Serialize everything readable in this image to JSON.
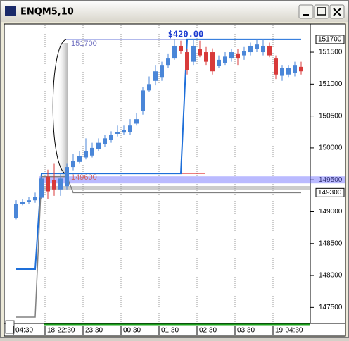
{
  "window": {
    "title": "ENQM5,10"
  },
  "chart_data": {
    "type": "candlestick",
    "categories": [
      "04:30",
      null,
      null,
      null,
      null,
      "18-22:30",
      null,
      null,
      null,
      null,
      null,
      "23:30",
      null,
      null,
      null,
      null,
      null,
      "00:30",
      null,
      null,
      null,
      null,
      null,
      "01:30",
      null,
      null,
      null,
      null,
      null,
      "02:30",
      null,
      null,
      null,
      null,
      null,
      "03:30",
      null,
      null,
      null,
      null,
      null,
      "19-04:30",
      null,
      null,
      null,
      null
    ],
    "open": [
      148900,
      149120,
      149150,
      149180,
      149220,
      149550,
      149500,
      149350,
      149400,
      149700,
      149780,
      149850,
      149880,
      149980,
      150060,
      150130,
      150220,
      150240,
      150250,
      150380,
      150580,
      150900,
      151050,
      151100,
      151300,
      151400,
      151600,
      151500,
      151350,
      151550,
      151500,
      151500,
      151280,
      151330,
      151400,
      151480,
      151450,
      151500,
      151550,
      151500,
      151600,
      151400,
      151130,
      151150,
      151170,
      151270
    ],
    "high": [
      149180,
      149200,
      149230,
      149300,
      149550,
      149660,
      149750,
      149600,
      149750,
      149900,
      149950,
      150150,
      150080,
      150150,
      150200,
      150260,
      150350,
      150350,
      150450,
      150550,
      150950,
      151120,
      151300,
      151350,
      151480,
      151700,
      151680,
      151550,
      151700,
      151680,
      151580,
      151560,
      151450,
      151500,
      151550,
      151550,
      151580,
      151650,
      151700,
      151700,
      151650,
      151450,
      151300,
      151300,
      151350,
      151350
    ],
    "low": [
      148880,
      149100,
      149120,
      149140,
      149200,
      149200,
      149250,
      149250,
      149350,
      149650,
      149750,
      149820,
      149850,
      149950,
      150020,
      150080,
      150180,
      150200,
      150200,
      150350,
      150520,
      150880,
      150980,
      151050,
      151250,
      151380,
      151480,
      151150,
      151300,
      151420,
      151300,
      151150,
      151250,
      151300,
      151350,
      151300,
      151380,
      151450,
      151500,
      151450,
      151420,
      151080,
      151050,
      151100,
      151120,
      151150
    ],
    "close": [
      149120,
      149150,
      149180,
      149230,
      149520,
      149320,
      149350,
      149520,
      149700,
      149800,
      149870,
      149950,
      150000,
      150080,
      150150,
      150200,
      150250,
      150280,
      150350,
      150450,
      150900,
      151000,
      151200,
      151300,
      151400,
      151600,
      151520,
      151220,
      151600,
      151450,
      151350,
      151200,
      151380,
      151430,
      151500,
      151400,
      151520,
      151600,
      151620,
      151600,
      151450,
      151150,
      151250,
      151250,
      151300,
      151200
    ],
    "up_color": "#4a86d8",
    "down_color": "#d83a3a",
    "ylim": [
      147250,
      151920
    ],
    "yticks": [
      147500,
      148000,
      148500,
      149000,
      149500,
      150000,
      150500,
      151000,
      151500
    ],
    "grid": "x",
    "price_markers": [
      151700,
      149300
    ],
    "levels": [
      {
        "value": 151700,
        "color": "#3344cc"
      },
      {
        "value": 149600,
        "color": "#e03030"
      }
    ],
    "band": 149500,
    "annotation": "$420.00",
    "step_lines": [
      {
        "color": "#1e6fd9",
        "values": [
          148100,
          148100,
          148100,
          148100,
          149600,
          149600,
          149600,
          149600,
          149600,
          149600,
          149600,
          149600,
          149600,
          149600,
          149600,
          149600,
          149600,
          149600,
          149600,
          149600,
          149600,
          149600,
          149600,
          149600,
          149600,
          149600,
          149600,
          151700,
          151700,
          151700,
          151700,
          151700,
          151700,
          151700,
          151700,
          151700,
          151700,
          151700,
          151700,
          151700,
          151700,
          151700,
          151700,
          151700,
          151700,
          151700
        ]
      },
      {
        "color": "#808080",
        "values": [
          147350,
          147350,
          147350,
          147350,
          149550,
          149550,
          149550,
          149550,
          149550,
          149300,
          149300,
          149300,
          149300,
          149300,
          149300,
          149300,
          149300,
          149300,
          149300,
          149300,
          149300,
          149300,
          149300,
          149300,
          149300,
          149300,
          149300,
          149300,
          149300,
          149300,
          149300,
          149300,
          149300,
          149300,
          149300,
          149300,
          149300,
          149300,
          149300,
          149300,
          149300,
          149300,
          149300,
          149300,
          149300,
          149300
        ]
      }
    ]
  }
}
